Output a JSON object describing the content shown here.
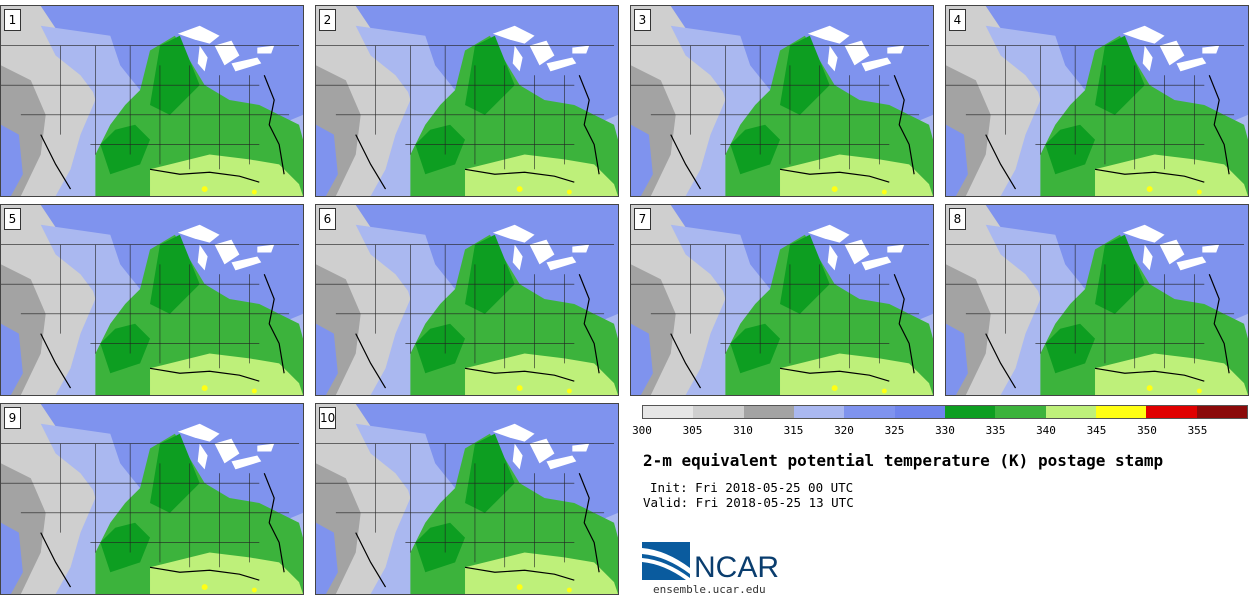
{
  "panels": [
    {
      "label": "1"
    },
    {
      "label": "2"
    },
    {
      "label": "3"
    },
    {
      "label": "4"
    },
    {
      "label": "5"
    },
    {
      "label": "6"
    },
    {
      "label": "7"
    },
    {
      "label": "8"
    },
    {
      "label": "9"
    },
    {
      "label": "10"
    }
  ],
  "colorbar": {
    "colors": [
      "#e6e6e6",
      "#cfcfcf",
      "#a3a3a3",
      "#aab8f0",
      "#7f93ee",
      "#6f84ec",
      "#0d9e21",
      "#3cb33c",
      "#bef07a",
      "#ffff14",
      "#e00000",
      "#8b0a0a"
    ],
    "ticks": [
      "300",
      "305",
      "310",
      "315",
      "320",
      "325",
      "330",
      "335",
      "340",
      "345",
      "350",
      "355"
    ]
  },
  "title": "2-m equivalent potential temperature (K) postage stamp",
  "init_text": "Init: Fri 2018-05-25 00 UTC",
  "valid_text": "Valid: Fri 2018-05-25 13 UTC",
  "logo_text": "NCAR",
  "website": "ensemble.ucar.edu"
}
